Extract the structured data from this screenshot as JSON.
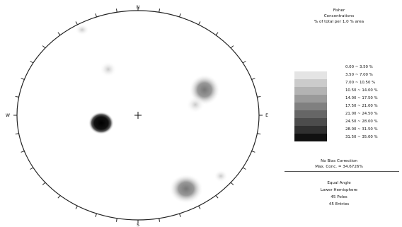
{
  "net": {
    "north_label": "N",
    "south_label": "S",
    "east_label": "E",
    "west_label": "W"
  },
  "legend": {
    "title_lines": [
      "Fisher",
      "Concentrations",
      "% of total per 1.0 % area"
    ],
    "ranges": [
      {
        "label": "0.00 ~ 3.50 %",
        "color": "#ffffff"
      },
      {
        "label": "3.50 ~ 7.00 %",
        "color": "#e4e4e4"
      },
      {
        "label": "7.00 ~ 10.50 %",
        "color": "#cbcbcb"
      },
      {
        "label": "10.50 ~ 14.00 %",
        "color": "#b3b3b3"
      },
      {
        "label": "14.00 ~ 17.50 %",
        "color": "#9a9a9a"
      },
      {
        "label": "17.50 ~ 21.00 %",
        "color": "#808080"
      },
      {
        "label": "21.00 ~ 24.50 %",
        "color": "#666666"
      },
      {
        "label": "24.50 ~ 28.00 %",
        "color": "#4c4c4c"
      },
      {
        "label": "28.00 ~ 31.50 %",
        "color": "#303030"
      },
      {
        "label": "31.50 ~ 35.00 %",
        "color": "#111111"
      }
    ],
    "bias": "No Bias Correction",
    "max_conc": "Max. Conc. = 34.6726%",
    "angle": "Equal Angle",
    "hemisphere": "Lower Hemisphere",
    "poles": "45 Poles",
    "entries": "45 Entries"
  }
}
